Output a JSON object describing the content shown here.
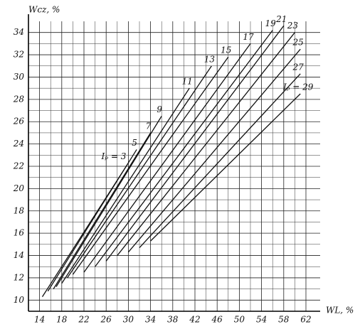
{
  "chart_data": {
    "type": "line",
    "y_label": "Wcz, %",
    "x_label": "WL, %",
    "xlim": [
      12,
      62
    ],
    "ylim": [
      9,
      35
    ],
    "xticks": [
      14,
      18,
      22,
      26,
      30,
      34,
      38,
      42,
      46,
      50,
      54,
      58,
      62
    ],
    "yticks": [
      10,
      12,
      14,
      16,
      18,
      20,
      22,
      24,
      26,
      28,
      30,
      32,
      34
    ],
    "grid": true,
    "minor_grid": true,
    "color": "#111",
    "series": [
      {
        "name": "Iₚ = 3",
        "x": [
          14.5,
          30
        ],
        "values": [
          10.3,
          22.3
        ]
      },
      {
        "name": "5",
        "x": [
          15.5,
          31.5
        ],
        "values": [
          10.8,
          23.5
        ]
      },
      {
        "name": "7",
        "x": [
          16.5,
          34
        ],
        "values": [
          11,
          25
        ]
      },
      {
        "name": "9",
        "x": [
          17,
          36
        ],
        "values": [
          11.2,
          26.5
        ]
      },
      {
        "name": "11",
        "x": [
          18,
          41
        ],
        "values": [
          11.5,
          29
        ]
      },
      {
        "name": "13",
        "x": [
          19,
          45
        ],
        "values": [
          12,
          31
        ]
      },
      {
        "name": "15",
        "x": [
          20,
          48
        ],
        "values": [
          12.3,
          31.8
        ]
      },
      {
        "name": "17",
        "x": [
          22,
          52
        ],
        "values": [
          12.5,
          33
        ]
      },
      {
        "name": "19",
        "x": [
          24,
          56
        ],
        "values": [
          13,
          34.2
        ]
      },
      {
        "name": "21",
        "x": [
          26,
          58
        ],
        "values": [
          13.5,
          34.6
        ]
      },
      {
        "name": "23",
        "x": [
          28,
          60
        ],
        "values": [
          14,
          34
        ]
      },
      {
        "name": "25",
        "x": [
          30,
          61
        ],
        "values": [
          14.3,
          32.5
        ]
      },
      {
        "name": "27",
        "x": [
          32,
          61
        ],
        "values": [
          14.7,
          30.3
        ]
      },
      {
        "name": "Iₚ = 29",
        "x": [
          34,
          61
        ],
        "values": [
          15.3,
          28.5
        ]
      }
    ]
  }
}
